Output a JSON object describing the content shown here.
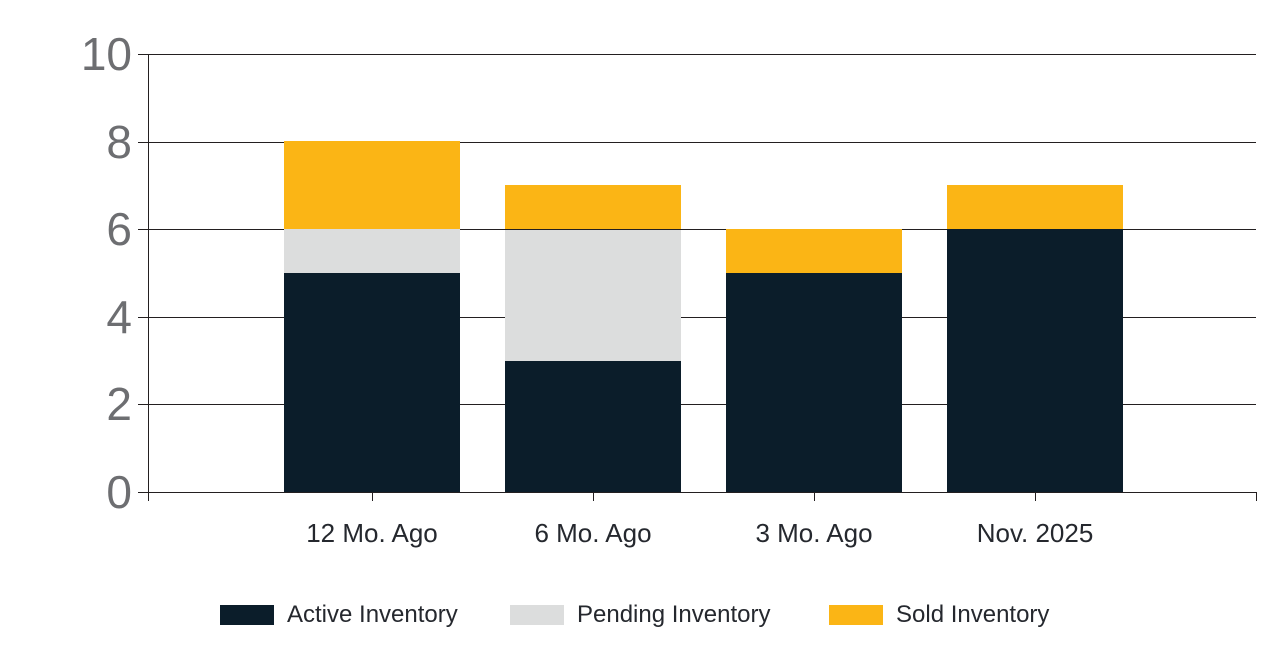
{
  "chart_data": {
    "type": "bar",
    "stacked": true,
    "title": "",
    "xlabel": "",
    "ylabel": "",
    "categories": [
      "12 Mo. Ago",
      "6 Mo. Ago",
      "3 Mo. Ago",
      "Nov. 2025"
    ],
    "series": [
      {
        "name": "Active Inventory",
        "color": "#0b1d2a",
        "values": [
          5,
          3,
          5,
          6
        ]
      },
      {
        "name": "Pending Inventory",
        "color": "#dcdddd",
        "values": [
          1,
          3,
          0,
          0
        ]
      },
      {
        "name": "Sold Inventory",
        "color": "#fbb515",
        "values": [
          2,
          1,
          1,
          1
        ]
      }
    ],
    "totals": [
      8,
      7,
      6,
      7
    ],
    "ylim": [
      0,
      10
    ],
    "yticks": [
      0,
      2,
      4,
      6,
      8,
      10
    ],
    "grid": true,
    "legend_position": "bottom"
  },
  "colors": {
    "active_inventory": "#0b1d2a",
    "pending_inventory": "#dcdddd",
    "sold_inventory": "#fbb515",
    "grid_line": "#231f20",
    "y_tick_label": "#6d6e71",
    "category_label": "#25282e",
    "background": "#ffffff"
  }
}
